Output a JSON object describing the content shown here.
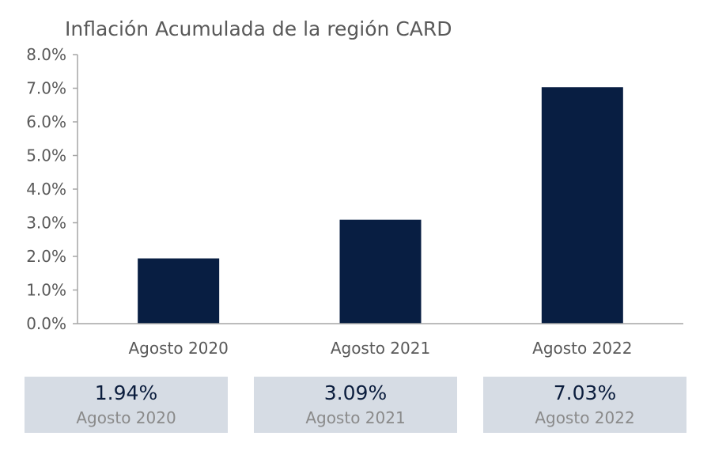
{
  "colors": {
    "bar": "#081e42",
    "axis": "#a6a6a6",
    "text": "#595959",
    "box_bg": "#d6dce4",
    "box_value": "#0b1d3d",
    "box_label": "#8a8a8a"
  },
  "chart_data": {
    "type": "bar",
    "title": "Inflación Acumulada de la región CARD",
    "xlabel": "",
    "ylabel": "",
    "categories": [
      "Agosto 2020",
      "Agosto 2021",
      "Agosto 2022"
    ],
    "values": [
      1.94,
      3.09,
      7.03
    ],
    "ylim": [
      0,
      8
    ],
    "yticks": [
      0,
      1,
      2,
      3,
      4,
      5,
      6,
      7,
      8
    ],
    "ytick_labels": [
      "0.0%",
      "1.0%",
      "2.0%",
      "3.0%",
      "4.0%",
      "5.0%",
      "6.0%",
      "7.0%",
      "8.0%"
    ],
    "grid": false,
    "legend": "none"
  },
  "summary": [
    {
      "value": "1.94%",
      "label": "Agosto 2020"
    },
    {
      "value": "3.09%",
      "label": "Agosto 2021"
    },
    {
      "value": "7.03%",
      "label": "Agosto 2022"
    }
  ]
}
